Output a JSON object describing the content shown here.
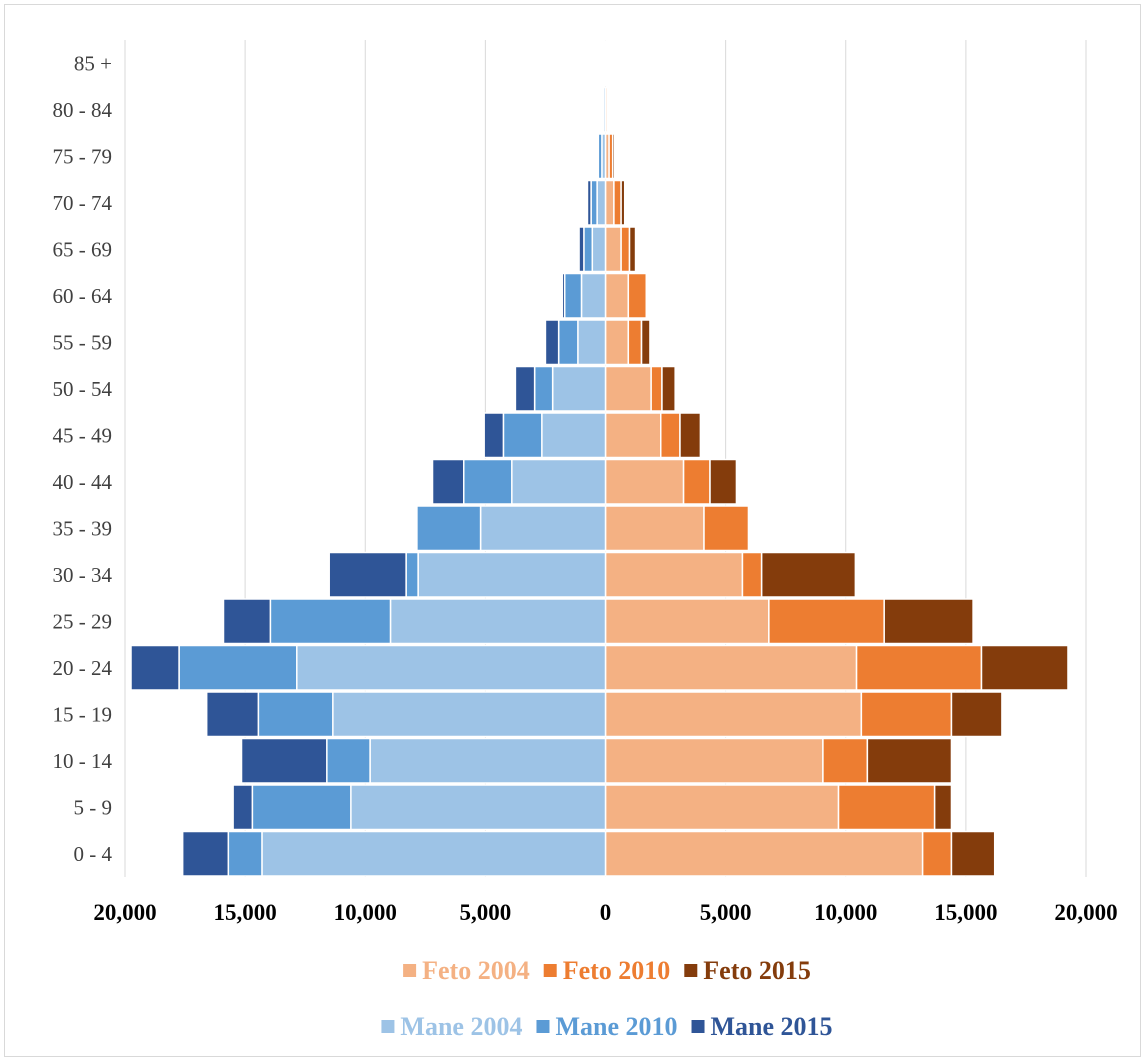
{
  "chart_data": {
    "type": "bar",
    "orientation": "horizontal-stacked-pyramid",
    "categories": [
      "0 - 4",
      "5 - 9",
      "10 - 14",
      "15 - 19",
      "20 - 24",
      "25 - 29",
      "30 - 34",
      "35 - 39",
      "40 - 44",
      "45 - 49",
      "50 - 54",
      "55 - 59",
      "60 - 64",
      "65 - 69",
      "70 - 74",
      "75 - 79",
      "80 - 84",
      "85 +"
    ],
    "xlim": [
      -20000,
      20000
    ],
    "x_ticks": [
      -20000,
      -15000,
      -10000,
      -5000,
      0,
      5000,
      10000,
      15000,
      20000
    ],
    "x_tick_labels": [
      "20,000",
      "15,000",
      "10,000",
      "5,000",
      "0",
      "5,000",
      "10,000",
      "15,000",
      "20,000"
    ],
    "grid": true,
    "legend_position": "bottom",
    "series": [
      {
        "name": "Feto 2004",
        "side": "right",
        "color": "#f4b183",
        "values": [
          13200,
          9700,
          9050,
          10650,
          10450,
          6800,
          5700,
          4100,
          3250,
          2300,
          1900,
          950,
          950,
          650,
          350,
          150,
          80,
          60
        ]
      },
      {
        "name": "Feto 2010",
        "side": "right",
        "color": "#ed7d31",
        "values": [
          1200,
          4000,
          1850,
          3750,
          5200,
          4800,
          800,
          1850,
          1100,
          800,
          450,
          550,
          750,
          350,
          300,
          150,
          50,
          40
        ]
      },
      {
        "name": "Feto 2015",
        "side": "right",
        "color": "#843c0c",
        "values": [
          1800,
          700,
          3500,
          2100,
          3600,
          3700,
          3900,
          0,
          1100,
          850,
          550,
          350,
          50,
          250,
          150,
          80,
          20,
          10
        ]
      },
      {
        "name": "Mane 2004",
        "side": "left",
        "color": "#9dc3e6",
        "values": [
          14300,
          10600,
          9800,
          11350,
          12850,
          8950,
          7800,
          5200,
          3900,
          2650,
          2200,
          1150,
          1000,
          550,
          350,
          150,
          80,
          60
        ]
      },
      {
        "name": "Mane 2010",
        "side": "left",
        "color": "#5b9bd5",
        "values": [
          1400,
          4100,
          1800,
          3100,
          4900,
          5000,
          500,
          2650,
          2000,
          1600,
          750,
          800,
          700,
          350,
          250,
          150,
          50,
          40
        ]
      },
      {
        "name": "Mane 2015",
        "side": "left",
        "color": "#2f5597",
        "values": [
          1900,
          800,
          3550,
          2150,
          2000,
          1950,
          3200,
          0,
          1300,
          800,
          800,
          550,
          100,
          200,
          150,
          50,
          20,
          10
        ]
      }
    ]
  },
  "legend": {
    "row1": [
      {
        "label": "Feto 2004",
        "color": "#f4b183"
      },
      {
        "label": "Feto 2010",
        "color": "#ed7d31"
      },
      {
        "label": "Feto 2015",
        "color": "#843c0c"
      }
    ],
    "row2": [
      {
        "label": "Mane 2004",
        "color": "#9dc3e6"
      },
      {
        "label": "Mane 2010",
        "color": "#5b9bd5"
      },
      {
        "label": "Mane 2015",
        "color": "#2f5597"
      }
    ]
  }
}
